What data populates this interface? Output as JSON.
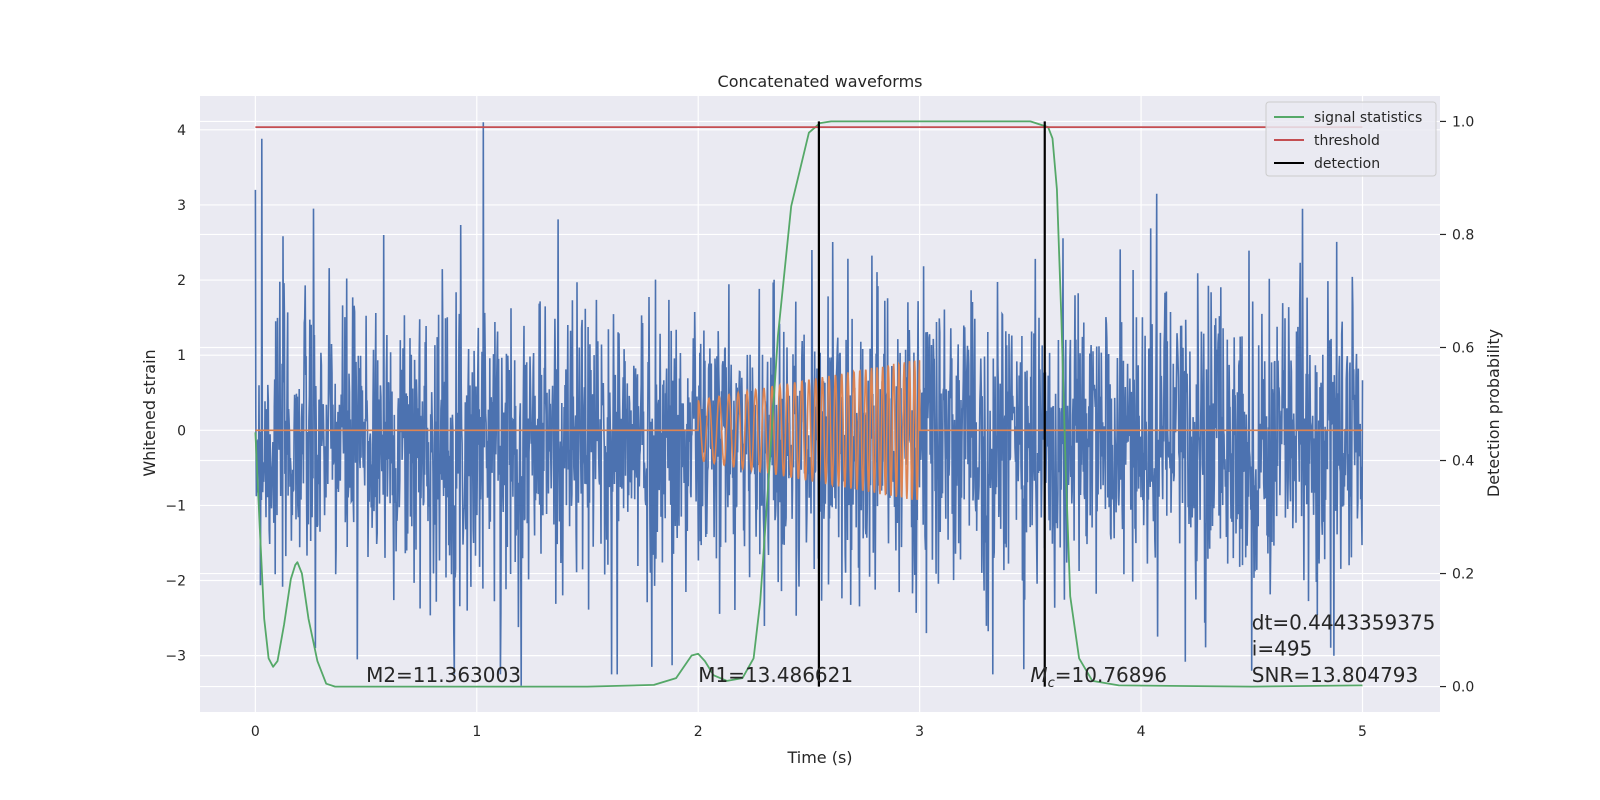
{
  "chart_data": {
    "type": "line",
    "title": "Concatenated waveforms",
    "xlabel": "Time (s)",
    "ylabel": "Whitened strain",
    "ylabel_right": "Detection probability",
    "xlim": [
      -0.25,
      5.35
    ],
    "ylim": [
      -3.75,
      4.45
    ],
    "ylim_right": [
      -0.045,
      1.045
    ],
    "xticks": [
      0,
      1,
      2,
      3,
      4,
      5
    ],
    "xtick_labels": [
      "0",
      "1",
      "2",
      "3",
      "4",
      "5"
    ],
    "yticks": [
      -3,
      -2,
      -1,
      0,
      1,
      2,
      3,
      4
    ],
    "ytick_labels": [
      "−3",
      "−2",
      "−1",
      "0",
      "1",
      "2",
      "3",
      "4"
    ],
    "yticks_right": [
      0.0,
      0.2,
      0.4,
      0.6,
      0.8,
      1.0
    ],
    "ytick_labels_right": [
      "0.0",
      "0.2",
      "0.4",
      "0.6",
      "0.8",
      "1.0"
    ],
    "grid": true,
    "legend_position": "top-right",
    "legend": [
      {
        "label": "signal statistics",
        "color": "#55a868"
      },
      {
        "label": "threshold",
        "color": "#c44e52"
      },
      {
        "label": "detection",
        "color": "#000000"
      }
    ],
    "series": [
      {
        "name": "whitened strain",
        "axis": "left",
        "color": "#4c72b0",
        "style": "noise",
        "x_range": [
          0,
          5
        ],
        "envelope_typical": [
          -1.4,
          1.1
        ],
        "peaks": [
          [
            0.03,
            3.88
          ],
          [
            1.03,
            4.1
          ],
          [
            0.58,
            2.6
          ],
          [
            4.07,
            3.15
          ],
          [
            4.73,
            2.95
          ],
          [
            0.27,
            -2.9
          ],
          [
            0.46,
            -3.05
          ],
          [
            1.2,
            -3.4
          ],
          [
            1.61,
            -3.25
          ],
          [
            1.79,
            -3.15
          ],
          [
            3.03,
            -2.7
          ],
          [
            3.33,
            -3.25
          ],
          [
            3.47,
            -3.18
          ],
          [
            4.2,
            -3.08
          ],
          [
            4.5,
            -3.2
          ],
          [
            4.87,
            -3.0
          ]
        ]
      },
      {
        "name": "injected signal",
        "axis": "left",
        "color": "#dd8452",
        "style": "chirp",
        "x_range": [
          0,
          5
        ],
        "chirp_start": 2.0,
        "chirp_end": 3.0,
        "amplitude_start": 0.4,
        "amplitude_end": 0.95
      },
      {
        "name": "signal statistics",
        "axis": "right",
        "color": "#55a868",
        "x": [
          0.0,
          0.02,
          0.04,
          0.06,
          0.08,
          0.1,
          0.13,
          0.16,
          0.18,
          0.19,
          0.21,
          0.24,
          0.28,
          0.32,
          0.36,
          0.5,
          1.0,
          1.5,
          1.8,
          1.9,
          1.97,
          2.0,
          2.03,
          2.07,
          2.13,
          2.2,
          2.25,
          2.28,
          2.32,
          2.36,
          2.42,
          2.5,
          2.55,
          2.6,
          3.0,
          3.5,
          3.58,
          3.6,
          3.62,
          3.64,
          3.66,
          3.68,
          3.72,
          3.78,
          3.9,
          4.5,
          5.0
        ],
        "y": [
          0.45,
          0.28,
          0.12,
          0.05,
          0.035,
          0.045,
          0.11,
          0.19,
          0.215,
          0.22,
          0.2,
          0.12,
          0.045,
          0.005,
          0.0,
          0.0,
          0.0,
          0.0,
          0.003,
          0.015,
          0.055,
          0.058,
          0.045,
          0.02,
          0.01,
          0.015,
          0.05,
          0.15,
          0.38,
          0.62,
          0.85,
          0.98,
          0.997,
          1.0,
          1.0,
          1.0,
          0.99,
          0.97,
          0.88,
          0.65,
          0.38,
          0.16,
          0.05,
          0.01,
          0.002,
          0.0,
          0.002
        ]
      },
      {
        "name": "threshold",
        "axis": "right",
        "color": "#c44e52",
        "x": [
          0,
          5
        ],
        "y": [
          0.99,
          0.99
        ]
      }
    ],
    "detections": {
      "color": "#000000",
      "x": [
        2.545,
        3.565
      ],
      "y_range": [
        0.0,
        1.0
      ]
    },
    "annotations": [
      {
        "id": "m2",
        "text": "M2=11.363003",
        "x": 0.5,
        "y": -3.35
      },
      {
        "id": "m1",
        "text": "M1=13.486621",
        "x": 2.0,
        "y": -3.35
      },
      {
        "id": "mc",
        "text": "=10.76896",
        "symbol": "M",
        "subscript": "c",
        "x": 3.5,
        "y": -3.35
      },
      {
        "id": "snr",
        "text": "SNR=13.804793",
        "x": 4.5,
        "y": -3.35
      },
      {
        "id": "dt",
        "text": "dt=0.4443359375",
        "x": 4.5,
        "y": -2.65
      },
      {
        "id": "i",
        "text": " i=495",
        "x": 4.5,
        "y": -3.0
      }
    ]
  }
}
